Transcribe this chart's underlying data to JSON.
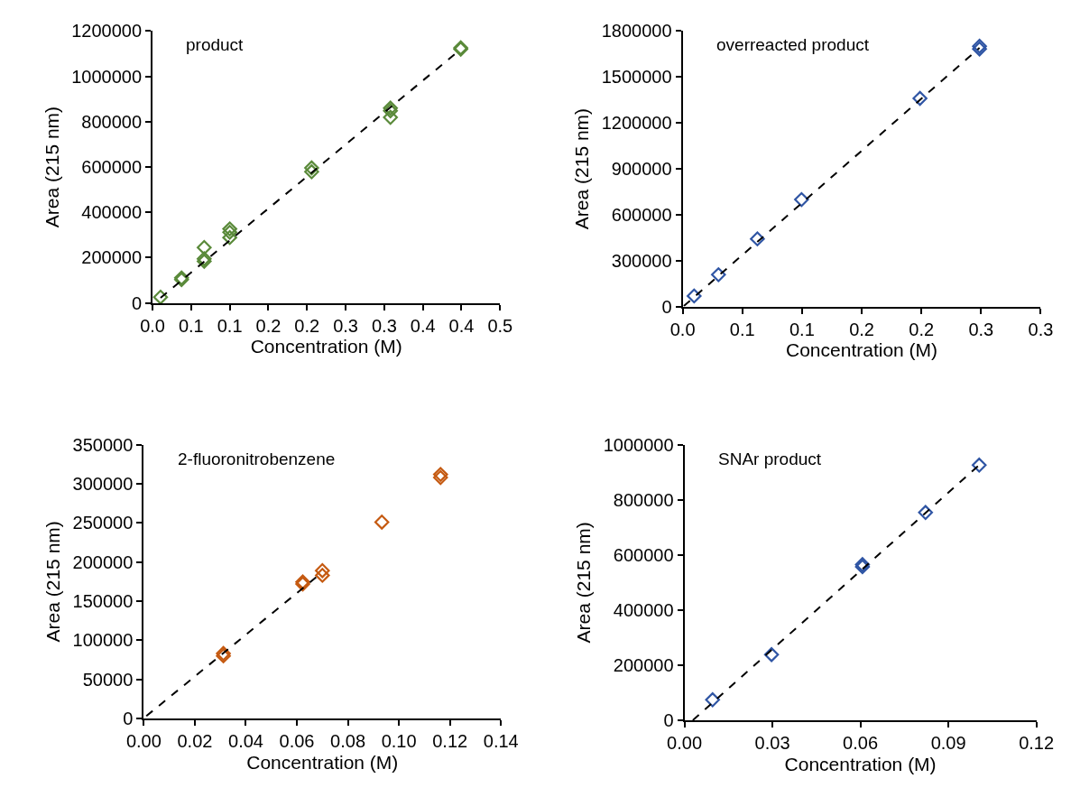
{
  "chart_data": [
    {
      "type": "scatter",
      "annotations": [
        "product"
      ],
      "xlabel": "Concentration (M)",
      "ylabel": "Area (215 nm)",
      "marker": "diamond",
      "xlim": [
        0,
        0.45
      ],
      "xticks": [
        {
          "value": 0,
          "label": "0.0"
        },
        {
          "value": 0.05,
          "label": "0.1"
        },
        {
          "value": 0.1,
          "label": "0.1"
        },
        {
          "value": 0.15,
          "label": "0.2"
        },
        {
          "value": 0.2,
          "label": "0.2"
        },
        {
          "value": 0.25,
          "label": "0.3"
        },
        {
          "value": 0.3,
          "label": "0.3"
        },
        {
          "value": 0.35,
          "label": "0.4"
        },
        {
          "value": 0.4,
          "label": "0.4"
        },
        {
          "value": 0.45,
          "label": "0.5"
        }
      ],
      "ylim": [
        0,
        1200000
      ],
      "yticks": [
        0,
        200000,
        400000,
        600000,
        800000,
        1000000,
        1200000
      ],
      "series": [
        {
          "color": "#5a8a3a",
          "x": [
            0.0104,
            0.0376,
            0.0376,
            0.0669,
            0.0669,
            0.0669,
            0.1,
            0.1,
            0.1,
            0.206,
            0.206,
            0.308,
            0.308,
            0.308,
            0.399,
            0.399
          ],
          "values": [
            26000,
            111000,
            103000,
            245000,
            195000,
            184000,
            327000,
            312000,
            289000,
            596000,
            579000,
            860000,
            848000,
            819000,
            1126000,
            1120000
          ]
        },
        {
          "type": "line",
          "marker": "none",
          "line_style": "dashed",
          "color": "#000000",
          "x": [
            0.0104,
            0.399
          ],
          "values": [
            23000,
            1120000
          ]
        }
      ]
    },
    {
      "type": "scatter",
      "annotations": [
        "overreacted product"
      ],
      "xlabel": "Concentration (M)",
      "ylabel": "Area (215 nm)",
      "marker": "diamond",
      "xlim": [
        0,
        0.3
      ],
      "xticks": [
        {
          "value": 0,
          "label": "0.0"
        },
        {
          "value": 0.05,
          "label": "0.1"
        },
        {
          "value": 0.1,
          "label": "0.1"
        },
        {
          "value": 0.15,
          "label": "0.2"
        },
        {
          "value": 0.2,
          "label": "0.2"
        },
        {
          "value": 0.25,
          "label": "0.3"
        },
        {
          "value": 0.3,
          "label": "0.3"
        }
      ],
      "ylim": [
        0,
        1800000
      ],
      "yticks": [
        0,
        300000,
        600000,
        900000,
        1200000,
        1500000,
        1800000
      ],
      "series": [
        {
          "color": "#2f55a4",
          "x": [
            0.0096,
            0.03,
            0.0626,
            0.0996,
            0.1988,
            0.2487,
            0.2487
          ],
          "values": [
            69000,
            208000,
            442000,
            699000,
            1360000,
            1701000,
            1683000
          ]
        },
        {
          "type": "line",
          "marker": "none",
          "line_style": "dashed",
          "color": "#000000",
          "x": [
            0.001,
            0.2487
          ],
          "values": [
            3000,
            1690000
          ]
        }
      ]
    },
    {
      "type": "scatter",
      "annotations": [
        "2-fluoronitrobenzene"
      ],
      "xlabel": "Concentration (M)",
      "ylabel": "Area (215 nm)",
      "marker": "diamond",
      "xlim": [
        0,
        0.14
      ],
      "xticks": [
        {
          "value": 0,
          "label": "0.00"
        },
        {
          "value": 0.02,
          "label": "0.02"
        },
        {
          "value": 0.04,
          "label": "0.04"
        },
        {
          "value": 0.06,
          "label": "0.06"
        },
        {
          "value": 0.08,
          "label": "0.08"
        },
        {
          "value": 0.1,
          "label": "0.10"
        },
        {
          "value": 0.12,
          "label": "0.12"
        },
        {
          "value": 0.14,
          "label": "0.14"
        }
      ],
      "ylim": [
        0,
        350000
      ],
      "yticks": [
        0,
        50000,
        100000,
        150000,
        200000,
        250000,
        300000,
        350000
      ],
      "series": [
        {
          "color": "#c55a11",
          "x": [
            0.0312,
            0.0312,
            0.0623,
            0.0623,
            0.07,
            0.07,
            0.0933,
            0.1163,
            0.1163
          ],
          "values": [
            83000,
            80000,
            174500,
            172000,
            189000,
            183000,
            251000,
            312000,
            308000
          ]
        },
        {
          "type": "line",
          "marker": "none",
          "line_style": "dashed",
          "color": "#000000",
          "x": [
            0.001,
            0.07
          ],
          "values": [
            3000,
            187000
          ]
        }
      ]
    },
    {
      "type": "scatter",
      "annotations": [
        "SNAr product"
      ],
      "xlabel": "Concentration (M)",
      "ylabel": "Area (215 nm)",
      "marker": "diamond",
      "xlim": [
        0,
        0.12
      ],
      "xticks": [
        {
          "value": 0,
          "label": "0.00"
        },
        {
          "value": 0.03,
          "label": "0.03"
        },
        {
          "value": 0.06,
          "label": "0.06"
        },
        {
          "value": 0.09,
          "label": "0.09"
        },
        {
          "value": 0.12,
          "label": "0.12"
        }
      ],
      "ylim": [
        0,
        1000000
      ],
      "yticks": [
        0,
        200000,
        400000,
        600000,
        800000,
        1000000
      ],
      "series": [
        {
          "color": "#2f55a4",
          "x": [
            0.0096,
            0.0297,
            0.0607,
            0.0607,
            0.0822,
            0.1005
          ],
          "values": [
            74000,
            238000,
            565000,
            557000,
            754000,
            926000
          ]
        },
        {
          "type": "line",
          "marker": "none",
          "line_style": "dashed",
          "color": "#000000",
          "x": [
            0.00287,
            0.1005
          ],
          "values": [
            0,
            926000
          ]
        }
      ]
    }
  ]
}
